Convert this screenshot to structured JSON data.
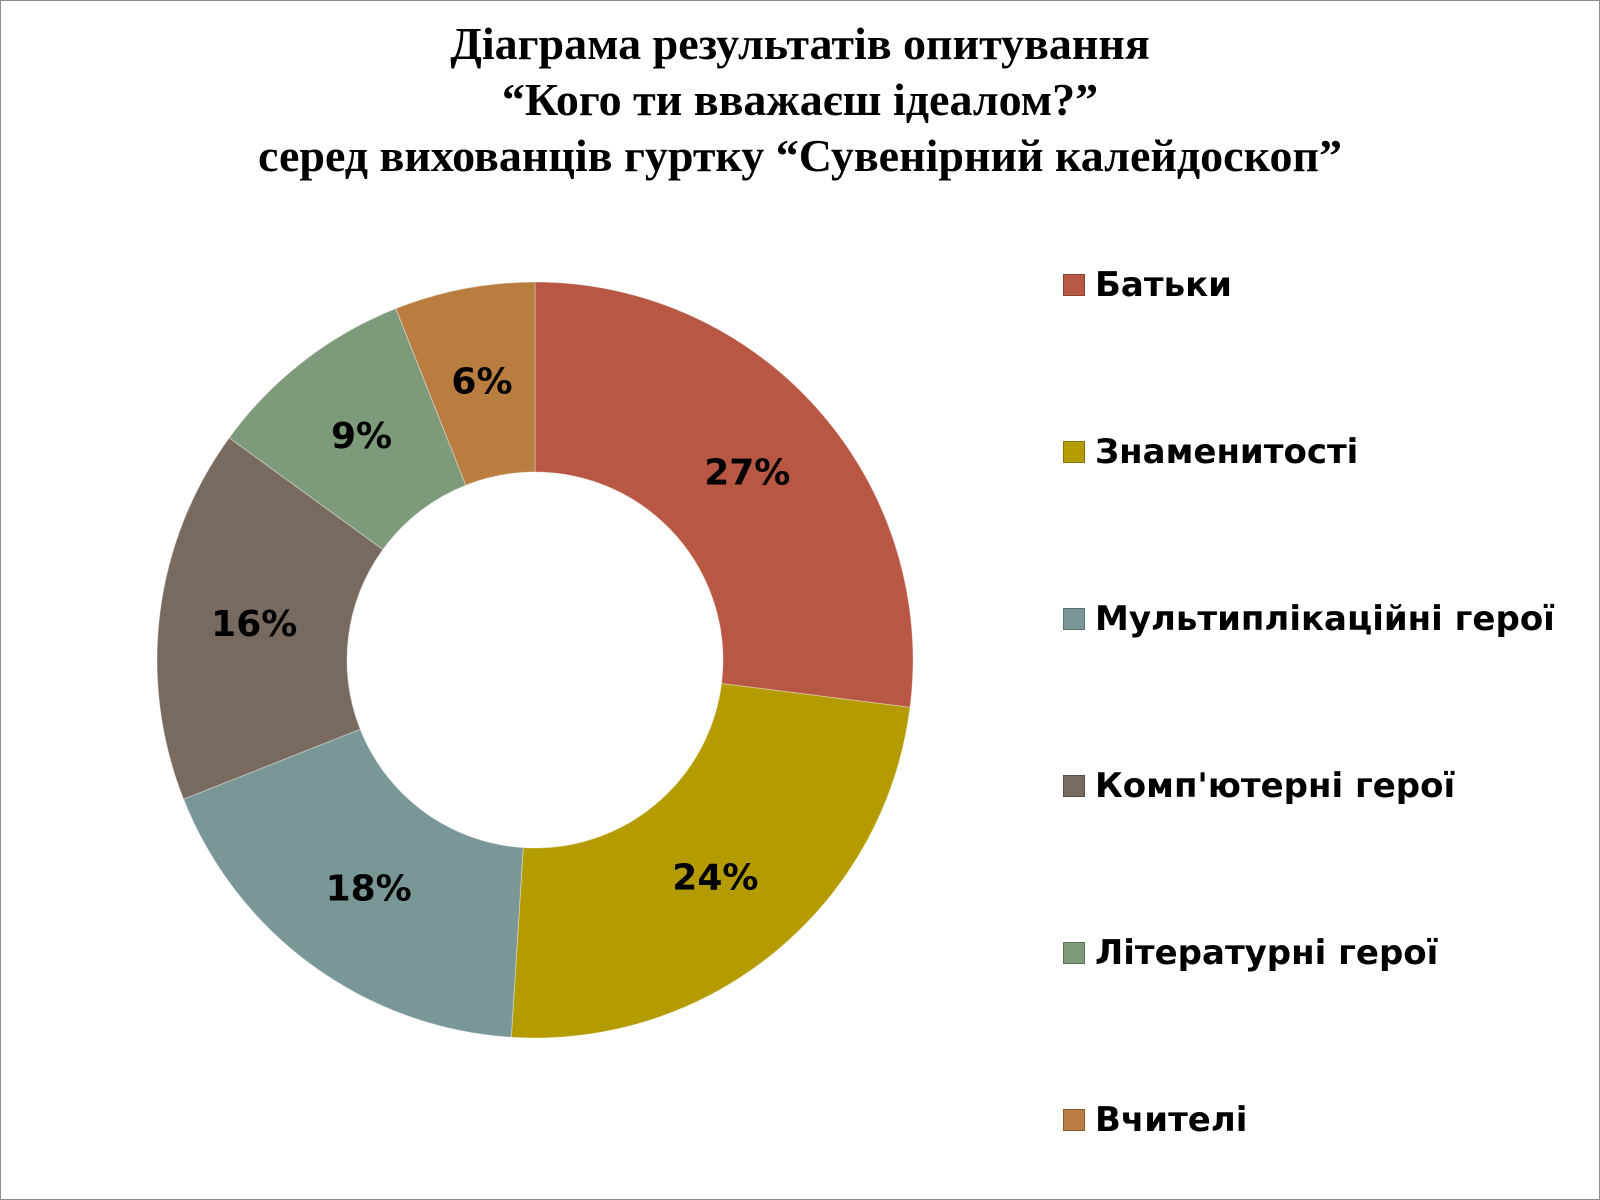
{
  "title_lines": [
    "Діаграма результатів опитування",
    "“Кого ти вважаєш ідеалом?”",
    "серед вихованців гуртку “Сувенірний калейдоскоп”"
  ],
  "chart_data": {
    "type": "pie",
    "variant": "donut",
    "title": "Діаграма результатів опитування “Кого ти вважаєш ідеалом?” серед вихованців гуртку “Сувенірний калейдоскоп”",
    "legend_position": "right",
    "categories": [
      "Батьки",
      "Знаменитості",
      "Мультиплікаційні герої",
      "Комп'ютерні герої",
      "Літературні герої",
      "Вчителі"
    ],
    "values": [
      27,
      24,
      18,
      16,
      9,
      6
    ],
    "labels": [
      "27%",
      "24%",
      "18%",
      "16%",
      "9%",
      "6%"
    ],
    "colors": [
      "#b85743",
      "#b49c00",
      "#7a9798",
      "#796a5f",
      "#7d9b7a",
      "#b97d40"
    ]
  }
}
